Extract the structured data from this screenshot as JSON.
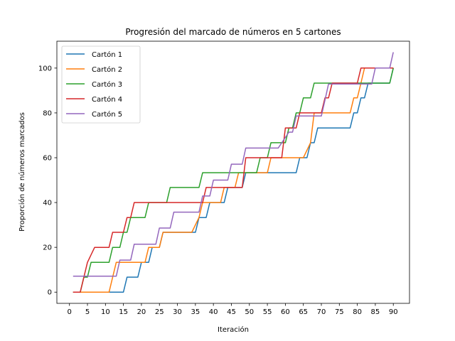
{
  "chart_data": {
    "type": "line",
    "title": "Progresión del marcado de números en 5 cartones",
    "xlabel": "Iteración",
    "ylabel": "Proporción de números marcados",
    "xlim": [
      -3.5,
      94.5
    ],
    "ylim": [
      -5,
      112
    ],
    "xticks": [
      0,
      5,
      10,
      15,
      20,
      25,
      30,
      35,
      40,
      45,
      50,
      55,
      60,
      65,
      70,
      75,
      80,
      85,
      90
    ],
    "yticks": [
      0,
      20,
      40,
      60,
      80,
      100
    ],
    "grid": false,
    "legend_position": "upper-left",
    "series": [
      {
        "name": "Cartón 1",
        "color": "#1f77b4",
        "points": [
          [
            1,
            0
          ],
          [
            15,
            0
          ],
          [
            16,
            6.7
          ],
          [
            19,
            6.7
          ],
          [
            20,
            13.3
          ],
          [
            22,
            13.3
          ],
          [
            23,
            20
          ],
          [
            25,
            20
          ],
          [
            26,
            26.7
          ],
          [
            35,
            26.7
          ],
          [
            36,
            33.3
          ],
          [
            38,
            33.3
          ],
          [
            39,
            40
          ],
          [
            43,
            40
          ],
          [
            44,
            46.7
          ],
          [
            48,
            46.7
          ],
          [
            49,
            53.3
          ],
          [
            63,
            53.3
          ],
          [
            64,
            60
          ],
          [
            66,
            60
          ],
          [
            67,
            66.7
          ],
          [
            68,
            66.7
          ],
          [
            69,
            73.3
          ],
          [
            78,
            73.3
          ],
          [
            79,
            80
          ],
          [
            80,
            80
          ],
          [
            81,
            86.7
          ],
          [
            82,
            86.7
          ],
          [
            83,
            93.3
          ],
          [
            89,
            93.3
          ],
          [
            90,
            100
          ]
        ]
      },
      {
        "name": "Cartón 2",
        "color": "#ff7f0e",
        "points": [
          [
            1,
            0
          ],
          [
            11,
            0
          ],
          [
            13,
            13.3
          ],
          [
            21,
            13.3
          ],
          [
            22,
            20
          ],
          [
            25,
            20
          ],
          [
            26,
            26.7
          ],
          [
            34,
            26.7
          ],
          [
            36,
            33.3
          ],
          [
            37,
            40
          ],
          [
            42,
            40
          ],
          [
            43,
            46.7
          ],
          [
            46,
            46.7
          ],
          [
            47,
            53.3
          ],
          [
            55,
            53.3
          ],
          [
            56,
            60
          ],
          [
            65,
            60
          ],
          [
            67,
            66.7
          ],
          [
            68,
            80
          ],
          [
            78,
            80
          ],
          [
            79,
            86.7
          ],
          [
            80,
            86.7
          ],
          [
            81,
            93.3
          ],
          [
            82,
            100
          ],
          [
            90,
            100
          ]
        ]
      },
      {
        "name": "Cartón 3",
        "color": "#2ca02c",
        "points": [
          [
            1,
            0
          ],
          [
            3,
            0
          ],
          [
            4,
            6.7
          ],
          [
            5,
            6.7
          ],
          [
            6,
            13.3
          ],
          [
            10,
            13.3
          ],
          [
            11,
            13.3
          ],
          [
            12,
            20
          ],
          [
            14,
            20
          ],
          [
            15,
            26.7
          ],
          [
            16,
            26.7
          ],
          [
            17,
            33.3
          ],
          [
            21,
            33.3
          ],
          [
            22,
            40
          ],
          [
            27,
            40
          ],
          [
            28,
            46.7
          ],
          [
            36,
            46.7
          ],
          [
            37,
            53.3
          ],
          [
            52,
            53.3
          ],
          [
            53,
            60
          ],
          [
            55,
            60
          ],
          [
            56,
            66.7
          ],
          [
            60,
            66.7
          ],
          [
            61,
            73.3
          ],
          [
            62,
            73.3
          ],
          [
            63,
            80
          ],
          [
            64,
            80
          ],
          [
            65,
            86.7
          ],
          [
            67,
            86.7
          ],
          [
            68,
            93.3
          ],
          [
            89,
            93.3
          ],
          [
            90,
            100
          ]
        ]
      },
      {
        "name": "Cartón 4",
        "color": "#d62728",
        "points": [
          [
            1,
            0
          ],
          [
            3,
            0
          ],
          [
            5,
            13.3
          ],
          [
            7,
            20
          ],
          [
            11,
            20
          ],
          [
            12,
            26.7
          ],
          [
            15,
            26.7
          ],
          [
            16,
            33.3
          ],
          [
            17,
            33.3
          ],
          [
            18,
            40
          ],
          [
            37,
            40
          ],
          [
            38,
            46.7
          ],
          [
            48,
            46.7
          ],
          [
            49,
            60
          ],
          [
            59,
            60
          ],
          [
            60,
            73.3
          ],
          [
            63,
            73.3
          ],
          [
            64,
            80
          ],
          [
            70,
            80
          ],
          [
            71,
            86.7
          ],
          [
            72,
            86.7
          ],
          [
            73,
            93.3
          ],
          [
            80,
            93.3
          ],
          [
            81,
            100
          ],
          [
            90,
            100
          ]
        ]
      },
      {
        "name": "Cartón 5",
        "color": "#9467bd",
        "points": [
          [
            1,
            7.1
          ],
          [
            13,
            7.1
          ],
          [
            14,
            14.3
          ],
          [
            17,
            14.3
          ],
          [
            18,
            21.4
          ],
          [
            24,
            21.4
          ],
          [
            25,
            28.6
          ],
          [
            28,
            28.6
          ],
          [
            29,
            35.7
          ],
          [
            36,
            35.7
          ],
          [
            37,
            42.9
          ],
          [
            39,
            42.9
          ],
          [
            40,
            50
          ],
          [
            44,
            50
          ],
          [
            45,
            57.1
          ],
          [
            48,
            57.1
          ],
          [
            49,
            64.3
          ],
          [
            57,
            64.3
          ],
          [
            58,
            64.3
          ],
          [
            61,
            71.4
          ],
          [
            62,
            71.4
          ],
          [
            63,
            78.6
          ],
          [
            70,
            78.6
          ],
          [
            71,
            85.7
          ],
          [
            72,
            92.9
          ],
          [
            84,
            92.9
          ],
          [
            85,
            100
          ],
          [
            89,
            100
          ],
          [
            90,
            107.1
          ]
        ]
      }
    ]
  }
}
